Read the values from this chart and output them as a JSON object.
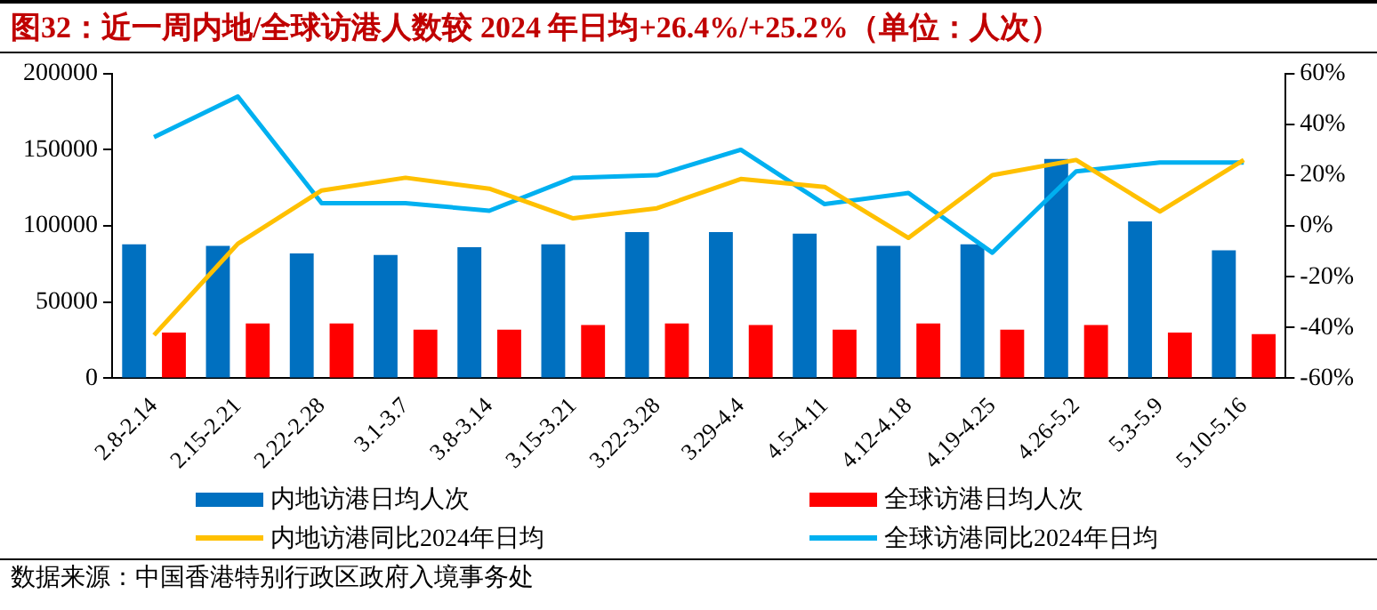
{
  "chart_data": {
    "type": "bar",
    "title": "图32：近一周内地/全球访港人数较 2024 年日均+26.4%/+25.2%（单位：人次）",
    "categories": [
      "2.8-2.14",
      "2.15-2.21",
      "2.22-2.28",
      "3.1-3.7",
      "3.8-3.14",
      "3.15-3.21",
      "3.22-3.28",
      "3.29-4.4",
      "4.5-4.11",
      "4.12-4.18",
      "4.19-4.25",
      "4.26-5.2",
      "5.3-5.9",
      "5.10-5.16"
    ],
    "series": [
      {
        "name": "内地访港日均人次",
        "color": "#0070c0",
        "values": [
          88000,
          87000,
          82000,
          81000,
          86000,
          88000,
          96000,
          96000,
          95000,
          87000,
          88000,
          144000,
          103000,
          84000
        ]
      },
      {
        "name": "全球访港日均人次",
        "color": "#ff0000",
        "values": [
          30000,
          36000,
          36000,
          32000,
          32000,
          35000,
          36000,
          35000,
          32000,
          36000,
          32000,
          35000,
          30000,
          29000
        ]
      },
      {
        "name": "内地访港同比2024年日均",
        "type": "line",
        "axis": "y2",
        "color": "#ffc000",
        "values": [
          -43,
          -7,
          14,
          19,
          14.7,
          3,
          7,
          18.5,
          15.4,
          -4.7,
          20,
          26,
          5.7,
          26
        ]
      },
      {
        "name": "全球访港同比2024年日均",
        "type": "line",
        "axis": "y2",
        "color": "#00b0f0",
        "values": [
          35,
          51,
          9,
          9,
          6,
          19,
          20,
          30,
          8.6,
          13,
          -10.5,
          21.5,
          25,
          25
        ]
      }
    ],
    "ylim": [
      0,
      200000
    ],
    "yticks": [
      0,
      50000,
      100000,
      150000,
      200000
    ],
    "y2lim": [
      -60,
      60
    ],
    "y2ticks": [
      {
        "value": -60,
        "label": "-60%"
      },
      {
        "value": -40,
        "label": "-40%"
      },
      {
        "value": -20,
        "label": "-20%"
      },
      {
        "value": 0,
        "label": "0%"
      },
      {
        "value": 20,
        "label": "20%"
      },
      {
        "value": 40,
        "label": "40%"
      },
      {
        "value": 60,
        "label": "60%"
      }
    ],
    "grid": false,
    "legend": "bottom",
    "marker": "none",
    "line_style": "solid",
    "annotations": [
      "数据来源：中国香港特别行政区政府入境事务处"
    ]
  }
}
